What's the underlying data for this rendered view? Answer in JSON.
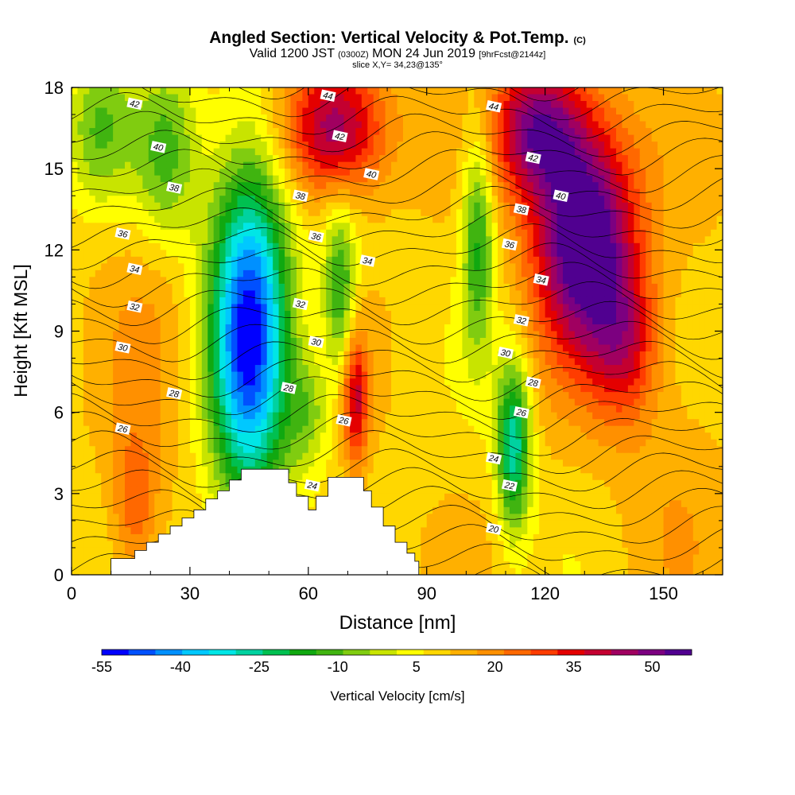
{
  "title": {
    "main": "Angled Section: Vertical Velocity & Pot.Temp.",
    "copyright": "(C)",
    "valid_a": "Valid 1200 JST",
    "valid_utc": "(0300Z)",
    "valid_b": "MON 24 Jun 2019",
    "forecast": "[9hrFcst@2144z]",
    "slice": "slice X,Y= 34,23@135°"
  },
  "chart_data": {
    "type": "heatmap",
    "xlabel": "Distance [nm]",
    "ylabel": "Height [Kft MSL]",
    "xlim": [
      0,
      165
    ],
    "ylim": [
      0,
      18
    ],
    "x_ticks": [
      0,
      30,
      60,
      90,
      120,
      150
    ],
    "y_ticks": [
      0,
      3,
      6,
      9,
      12,
      15,
      18
    ],
    "colorbar": {
      "label": "Vertical Velocity [cm/s]",
      "tick_labels": [
        "-55",
        "-40",
        "-25",
        "-10",
        "5",
        "20",
        "35",
        "50"
      ],
      "tick_values": [
        -55,
        -40,
        -25,
        -10,
        5,
        20,
        35,
        50
      ],
      "min": -55,
      "max": 57.5,
      "colors": [
        "#0000ff",
        "#0050ff",
        "#0090ff",
        "#00c8ff",
        "#00e6e6",
        "#00d2a0",
        "#00c050",
        "#10a810",
        "#40b410",
        "#80cc10",
        "#c8e400",
        "#ffff00",
        "#ffd700",
        "#ffb000",
        "#ff9000",
        "#ff6800",
        "#ff3c00",
        "#e40000",
        "#c40030",
        "#a00060",
        "#7c0080",
        "#500090"
      ]
    },
    "terrain_profile": [
      [
        10,
        0.6
      ],
      [
        13,
        0.6
      ],
      [
        16,
        0.9
      ],
      [
        19,
        1.2
      ],
      [
        22,
        1.5
      ],
      [
        25,
        1.8
      ],
      [
        28,
        2.1
      ],
      [
        31,
        2.4
      ],
      [
        34,
        2.8
      ],
      [
        37,
        3.1
      ],
      [
        40,
        3.5
      ],
      [
        43,
        3.9
      ],
      [
        52,
        3.9
      ],
      [
        55,
        3.4
      ],
      [
        57,
        2.9
      ],
      [
        60,
        2.4
      ],
      [
        62,
        2.9
      ],
      [
        65,
        3.6
      ],
      [
        72,
        3.6
      ],
      [
        74,
        3.1
      ],
      [
        76,
        2.5
      ],
      [
        79,
        1.8
      ],
      [
        82,
        1.2
      ],
      [
        85,
        0.8
      ],
      [
        87,
        0.5
      ],
      [
        88,
        0.3
      ]
    ],
    "field_features": [
      {
        "x": 45,
        "y": 9,
        "sx": 7,
        "sy": 4.5,
        "v": -62
      },
      {
        "x": 24,
        "y": 15.5,
        "sx": 6,
        "sy": 2.5,
        "v": -22
      },
      {
        "x": 7,
        "y": 16.5,
        "sx": 6,
        "sy": 2,
        "v": -18
      },
      {
        "x": 68,
        "y": 10.5,
        "sx": 3,
        "sy": 2.2,
        "v": -26
      },
      {
        "x": 60,
        "y": 6,
        "sx": 4,
        "sy": 1.5,
        "v": -15
      },
      {
        "x": 103,
        "y": 12.5,
        "sx": 3,
        "sy": 3,
        "v": -26
      },
      {
        "x": 112,
        "y": 4.8,
        "sx": 3,
        "sy": 2.2,
        "v": -38
      },
      {
        "x": 72,
        "y": 6.5,
        "sx": 2.2,
        "sy": 1.8,
        "v": 28
      },
      {
        "x": 67,
        "y": 16.5,
        "sx": 9,
        "sy": 1.8,
        "v": 38
      },
      {
        "x": 130,
        "y": 12.5,
        "sx": 9,
        "sy": 3,
        "v": 54
      },
      {
        "x": 118,
        "y": 16.5,
        "sx": 8,
        "sy": 1.8,
        "v": 38
      },
      {
        "x": 140,
        "y": 8.5,
        "sx": 6,
        "sy": 2,
        "v": 22
      },
      {
        "x": 16,
        "y": 2.5,
        "sx": 4,
        "sy": 2,
        "v": 16
      },
      {
        "x": 152,
        "y": 4,
        "sx": 10,
        "sy": 4,
        "v": 5
      },
      {
        "x": 20,
        "y": 10,
        "sx": 8,
        "sy": 5,
        "v": 6
      }
    ],
    "theta_contour_start": 17,
    "theta_contour_end": 46,
    "theta_labels": [
      {
        "text": "42",
        "x": 16,
        "y": 17.4
      },
      {
        "text": "40",
        "x": 22,
        "y": 15.8
      },
      {
        "text": "38",
        "x": 26,
        "y": 14.3
      },
      {
        "text": "36",
        "x": 13,
        "y": 12.6
      },
      {
        "text": "34",
        "x": 16,
        "y": 11.3
      },
      {
        "text": "32",
        "x": 16,
        "y": 9.9
      },
      {
        "text": "30",
        "x": 13,
        "y": 8.4
      },
      {
        "text": "28",
        "x": 26,
        "y": 6.7
      },
      {
        "text": "26",
        "x": 13,
        "y": 5.4
      },
      {
        "text": "44",
        "x": 65,
        "y": 17.7
      },
      {
        "text": "42",
        "x": 68,
        "y": 16.2
      },
      {
        "text": "40",
        "x": 76,
        "y": 14.8
      },
      {
        "text": "38",
        "x": 58,
        "y": 14.0
      },
      {
        "text": "36",
        "x": 62,
        "y": 12.5
      },
      {
        "text": "34",
        "x": 75,
        "y": 11.6
      },
      {
        "text": "32",
        "x": 58,
        "y": 10.0
      },
      {
        "text": "30",
        "x": 62,
        "y": 8.6
      },
      {
        "text": "28",
        "x": 55,
        "y": 6.9
      },
      {
        "text": "26",
        "x": 69,
        "y": 5.7
      },
      {
        "text": "24",
        "x": 61,
        "y": 3.3
      },
      {
        "text": "44",
        "x": 107,
        "y": 17.3
      },
      {
        "text": "42",
        "x": 117,
        "y": 15.4
      },
      {
        "text": "40",
        "x": 124,
        "y": 14.0
      },
      {
        "text": "38",
        "x": 114,
        "y": 13.5
      },
      {
        "text": "36",
        "x": 111,
        "y": 12.2
      },
      {
        "text": "34",
        "x": 119,
        "y": 10.9
      },
      {
        "text": "32",
        "x": 114,
        "y": 9.4
      },
      {
        "text": "30",
        "x": 110,
        "y": 8.2
      },
      {
        "text": "28",
        "x": 117,
        "y": 7.1
      },
      {
        "text": "26",
        "x": 114,
        "y": 6.0
      },
      {
        "text": "24",
        "x": 107,
        "y": 4.3
      },
      {
        "text": "22",
        "x": 111,
        "y": 3.3
      },
      {
        "text": "20",
        "x": 107,
        "y": 1.7
      }
    ]
  }
}
